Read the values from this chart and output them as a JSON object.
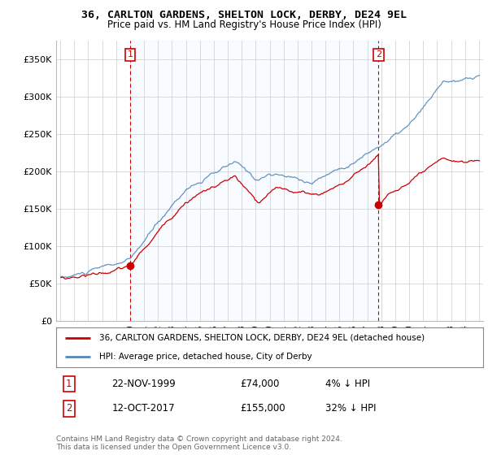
{
  "title": "36, CARLTON GARDENS, SHELTON LOCK, DERBY, DE24 9EL",
  "subtitle": "Price paid vs. HM Land Registry's House Price Index (HPI)",
  "legend_label_red": "36, CARLTON GARDENS, SHELTON LOCK, DERBY, DE24 9EL (detached house)",
  "legend_label_blue": "HPI: Average price, detached house, City of Derby",
  "footer": "Contains HM Land Registry data © Crown copyright and database right 2024.\nThis data is licensed under the Open Government Licence v3.0.",
  "annotation1_label": "1",
  "annotation1_date": "22-NOV-1999",
  "annotation1_price": "£74,000",
  "annotation1_hpi": "4% ↓ HPI",
  "annotation2_label": "2",
  "annotation2_date": "12-OCT-2017",
  "annotation2_price": "£155,000",
  "annotation2_hpi": "32% ↓ HPI",
  "red_color": "#cc0000",
  "blue_color": "#5588bb",
  "shade_color": "#ddeeff",
  "background_color": "#ffffff",
  "grid_color": "#cccccc",
  "ylim": [
    0,
    375000
  ],
  "yticks": [
    0,
    50000,
    100000,
    150000,
    200000,
    250000,
    300000,
    350000
  ],
  "ytick_labels": [
    "£0",
    "£50K",
    "£100K",
    "£150K",
    "£200K",
    "£250K",
    "£300K",
    "£350K"
  ],
  "sale1_x": 2000.0,
  "sale1_y": 74000,
  "sale2_x": 2017.8,
  "sale2_y": 155000,
  "xlim_min": 1994.7,
  "xlim_max": 2025.3
}
